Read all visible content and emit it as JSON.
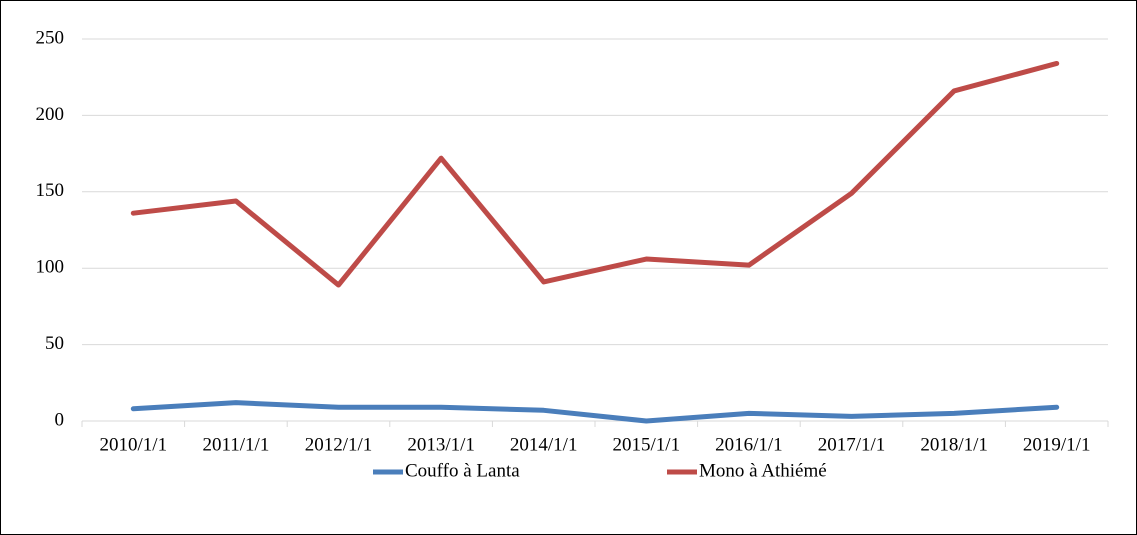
{
  "chart_data": {
    "type": "line",
    "categories": [
      "2010/1/1",
      "2011/1/1",
      "2012/1/1",
      "2013/1/1",
      "2014/1/1",
      "2015/1/1",
      "2016/1/1",
      "2017/1/1",
      "2018/1/1",
      "2019/1/1"
    ],
    "series": [
      {
        "name": "Couffo à Lanta",
        "color": "#4a7ebb",
        "values": [
          8,
          12,
          9,
          9,
          7,
          0,
          5,
          3,
          5,
          9
        ]
      },
      {
        "name": "Mono à Athiémé",
        "color": "#be4b48",
        "values": [
          136,
          144,
          89,
          172,
          91,
          106,
          102,
          149,
          216,
          234
        ]
      }
    ],
    "ylim": [
      0,
      250
    ],
    "yticks": [
      0,
      50,
      100,
      150,
      200,
      250
    ],
    "grid": true,
    "legend": "bottom"
  }
}
